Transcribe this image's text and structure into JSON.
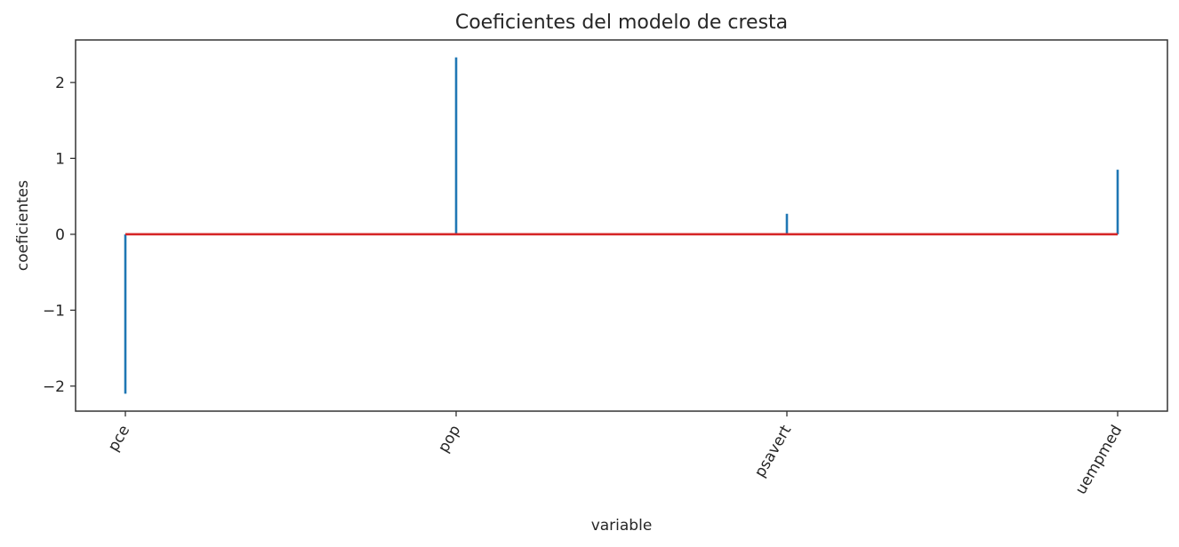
{
  "chart_data": {
    "type": "stem",
    "title": "Coeficientes del modelo de cresta",
    "xlabel": "variable",
    "ylabel": "coeficientes",
    "categories": [
      "pce",
      "pop",
      "psavert",
      "uempmed"
    ],
    "values": [
      -2.1,
      2.33,
      0.27,
      0.85
    ],
    "ylim": [
      -2.33,
      2.56
    ],
    "yticks": [
      -2,
      -1,
      0,
      1,
      2
    ],
    "ytick_labels": [
      "−2",
      "−1",
      "0",
      "1",
      "2"
    ],
    "grid": false,
    "stem_color": "#1f77b4",
    "baseline_color": "#d62728"
  }
}
